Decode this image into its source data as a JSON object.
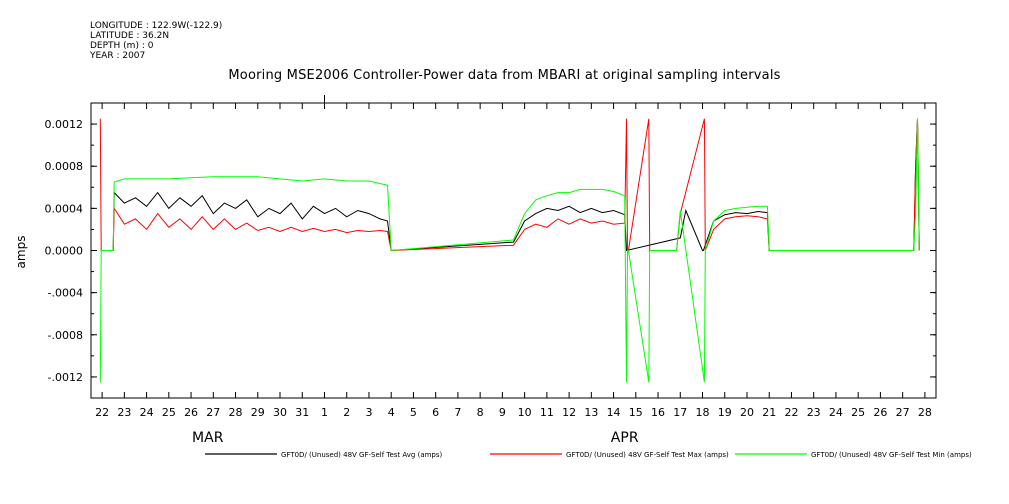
{
  "meta": {
    "longitude": "LONGITUDE : 122.9W(-122.9)",
    "latitude": "LATITUDE : 36.2N",
    "depth": "DEPTH (m) : 0",
    "year": "YEAR : 2007"
  },
  "chart_data": {
    "type": "line",
    "title": "Mooring MSE2006 Controller-Power data from MBARI at original sampling intervals",
    "ylabel": "amps",
    "xlabel": "",
    "ylim": [
      -0.0014,
      0.0014
    ],
    "yticks": [
      0.0012,
      0.0008,
      0.0004,
      0.0,
      -0.0004,
      -0.0008,
      -0.0012
    ],
    "ytick_labels": [
      "0.0012",
      "0.0008",
      "0.0004",
      "0.0000",
      "-.0004",
      "-.0008",
      "-.0012"
    ],
    "xlim": [
      "2007-03-21T12:00",
      "2007-04-28T12:00"
    ],
    "xtick_labels": [
      "22",
      "23",
      "24",
      "25",
      "26",
      "27",
      "28",
      "29",
      "30",
      "31",
      "1",
      "2",
      "3",
      "4",
      "5",
      "6",
      "7",
      "8",
      "9",
      "10",
      "11",
      "12",
      "13",
      "14",
      "15",
      "16",
      "17",
      "18",
      "19",
      "20",
      "21",
      "22",
      "23",
      "24",
      "25",
      "26",
      "27",
      "28"
    ],
    "month_labels": [
      "MAR",
      "APR"
    ],
    "grid": false,
    "legend_placement": "bottom",
    "series": [
      {
        "name": "GFT0D/ (Unused) 48V GF-Self Test Avg (amps)",
        "color": "#000000",
        "x": [
          "2007-03-22T00:00",
          "2007-03-22T12:00",
          "2007-03-22T13:00",
          "2007-03-23T00:00",
          "2007-03-23T12:00",
          "2007-03-24T00:00",
          "2007-03-24T12:00",
          "2007-03-25T00:00",
          "2007-03-25T12:00",
          "2007-03-26T00:00",
          "2007-03-26T12:00",
          "2007-03-27T00:00",
          "2007-03-27T12:00",
          "2007-03-28T00:00",
          "2007-03-28T12:00",
          "2007-03-29T00:00",
          "2007-03-29T12:00",
          "2007-03-30T00:00",
          "2007-03-30T12:00",
          "2007-03-31T00:00",
          "2007-03-31T12:00",
          "2007-04-01T00:00",
          "2007-04-01T12:00",
          "2007-04-02T00:00",
          "2007-04-02T12:00",
          "2007-04-03T00:00",
          "2007-04-03T12:00",
          "2007-04-03T20:00",
          "2007-04-04T00:00",
          "2007-04-09T12:00",
          "2007-04-10T00:00",
          "2007-04-10T12:00",
          "2007-04-11T00:00",
          "2007-04-11T12:00",
          "2007-04-12T00:00",
          "2007-04-12T12:00",
          "2007-04-13T00:00",
          "2007-04-13T12:00",
          "2007-04-14T00:00",
          "2007-04-14T12:00",
          "2007-04-14T14:00",
          "2007-04-17T00:00",
          "2007-04-17T06:00",
          "2007-04-18T00:00",
          "2007-04-18T01:00",
          "2007-04-18T12:00",
          "2007-04-19T00:00",
          "2007-04-19T12:00",
          "2007-04-20T00:00",
          "2007-04-20T12:00",
          "2007-04-20T22:00",
          "2007-04-21T00:00",
          "2007-04-27T12:00",
          "2007-04-27T14:00",
          "2007-04-27T16:00",
          "2007-04-27T18:00"
        ],
        "y": [
          0.0,
          0.0,
          0.00055,
          0.00045,
          0.0005,
          0.00042,
          0.00055,
          0.0004,
          0.0005,
          0.00042,
          0.00052,
          0.00035,
          0.00045,
          0.0004,
          0.00048,
          0.00032,
          0.0004,
          0.00035,
          0.00045,
          0.0003,
          0.00042,
          0.00035,
          0.0004,
          0.00032,
          0.00038,
          0.00035,
          0.0003,
          0.00028,
          0.0,
          8e-05,
          0.00028,
          0.00035,
          0.0004,
          0.00038,
          0.00042,
          0.00036,
          0.0004,
          0.00036,
          0.00038,
          0.00034,
          0.0,
          0.00012,
          0.00038,
          0.0,
          0.0,
          0.00028,
          0.00034,
          0.00036,
          0.00035,
          0.00037,
          0.00036,
          0.0,
          0.0,
          0.0008,
          0.00125,
          0.0
        ]
      },
      {
        "name": "GFT0D/ (Unused) 48V GF-Self Test Max (amps)",
        "color": "#ff0000",
        "x": [
          "2007-03-21T22:00",
          "2007-03-21T23:00",
          "2007-03-22T00:00",
          "2007-03-22T12:00",
          "2007-03-22T13:00",
          "2007-03-23T00:00",
          "2007-03-23T12:00",
          "2007-03-24T00:00",
          "2007-03-24T12:00",
          "2007-03-25T00:00",
          "2007-03-25T12:00",
          "2007-03-26T00:00",
          "2007-03-26T12:00",
          "2007-03-27T00:00",
          "2007-03-27T12:00",
          "2007-03-28T00:00",
          "2007-03-28T12:00",
          "2007-03-29T00:00",
          "2007-03-29T12:00",
          "2007-03-30T00:00",
          "2007-03-30T12:00",
          "2007-03-31T00:00",
          "2007-03-31T12:00",
          "2007-04-01T00:00",
          "2007-04-01T12:00",
          "2007-04-02T00:00",
          "2007-04-02T12:00",
          "2007-04-03T00:00",
          "2007-04-03T12:00",
          "2007-04-03T20:00",
          "2007-04-04T00:00",
          "2007-04-09T12:00",
          "2007-04-10T00:00",
          "2007-04-10T12:00",
          "2007-04-11T00:00",
          "2007-04-11T12:00",
          "2007-04-12T00:00",
          "2007-04-12T12:00",
          "2007-04-13T00:00",
          "2007-04-13T12:00",
          "2007-04-14T00:00",
          "2007-04-14T12:00",
          "2007-04-14T14:00",
          "2007-04-14T15:00",
          "2007-04-14T16:00",
          "2007-04-15T14:00",
          "2007-04-15T15:00",
          "2007-04-15T16:00",
          "2007-04-16T20:00",
          "2007-04-17T00:00",
          "2007-04-18T02:00",
          "2007-04-18T03:00",
          "2007-04-18T12:00",
          "2007-04-19T00:00",
          "2007-04-19T12:00",
          "2007-04-20T00:00",
          "2007-04-20T12:00",
          "2007-04-20T22:00",
          "2007-04-21T00:00",
          "2007-04-27T12:00",
          "2007-04-27T14:00",
          "2007-04-27T16:00",
          "2007-04-27T18:00"
        ],
        "y": [
          0.00125,
          0.0,
          0.0,
          0.0,
          0.0004,
          0.00025,
          0.0003,
          0.0002,
          0.00035,
          0.00022,
          0.0003,
          0.0002,
          0.00032,
          0.0002,
          0.0003,
          0.0002,
          0.00026,
          0.00019,
          0.00022,
          0.00018,
          0.00022,
          0.00018,
          0.00021,
          0.00018,
          0.0002,
          0.00017,
          0.00019,
          0.00018,
          0.00019,
          0.00018,
          0.0,
          5e-05,
          0.0002,
          0.00025,
          0.00022,
          0.0003,
          0.00025,
          0.0003,
          0.00026,
          0.00028,
          0.00025,
          0.00026,
          0.00125,
          0.0,
          0.0,
          0.00125,
          0.0,
          0.0,
          0.0,
          0.00035,
          0.00125,
          0.0,
          0.0002,
          0.0003,
          0.00032,
          0.00033,
          0.00032,
          0.0003,
          0.0,
          0.0,
          0.0008,
          0.00125,
          0.0
        ]
      },
      {
        "name": "GFT0D/ (Unused) 48V GF-Self Test Min (amps)",
        "color": "#00ff00",
        "x": [
          "2007-03-21T22:00",
          "2007-03-21T23:00",
          "2007-03-22T00:00",
          "2007-03-22T12:00",
          "2007-03-22T13:00",
          "2007-03-23T00:00",
          "2007-03-24T00:00",
          "2007-03-25T00:00",
          "2007-03-26T00:00",
          "2007-03-27T00:00",
          "2007-03-28T00:00",
          "2007-03-29T00:00",
          "2007-03-30T00:00",
          "2007-03-31T00:00",
          "2007-04-01T00:00",
          "2007-04-02T00:00",
          "2007-04-03T00:00",
          "2007-04-03T20:00",
          "2007-04-04T00:00",
          "2007-04-09T12:00",
          "2007-04-10T00:00",
          "2007-04-10T12:00",
          "2007-04-11T00:00",
          "2007-04-11T12:00",
          "2007-04-12T00:00",
          "2007-04-12T12:00",
          "2007-04-13T00:00",
          "2007-04-13T12:00",
          "2007-04-14T00:00",
          "2007-04-14T12:00",
          "2007-04-14T14:00",
          "2007-04-14T15:00",
          "2007-04-14T16:00",
          "2007-04-15T14:00",
          "2007-04-15T15:00",
          "2007-04-15T16:00",
          "2007-04-16T20:00",
          "2007-04-17T00:00",
          "2007-04-18T02:00",
          "2007-04-18T03:00",
          "2007-04-18T12:00",
          "2007-04-19T00:00",
          "2007-04-19T12:00",
          "2007-04-20T00:00",
          "2007-04-20T12:00",
          "2007-04-20T22:00",
          "2007-04-21T00:00",
          "2007-04-27T12:00",
          "2007-04-27T14:00",
          "2007-04-27T16:00",
          "2007-04-27T18:00"
        ],
        "y": [
          -0.00125,
          0.0,
          0.0,
          0.0,
          0.00065,
          0.00068,
          0.00068,
          0.00068,
          0.00069,
          0.0007,
          0.0007,
          0.0007,
          0.00068,
          0.00066,
          0.00068,
          0.00066,
          0.00066,
          0.00062,
          0.0,
          0.0001,
          0.00035,
          0.00048,
          0.00052,
          0.00055,
          0.00055,
          0.00058,
          0.00058,
          0.00058,
          0.00056,
          0.00052,
          -0.00125,
          0.0,
          0.0,
          -0.00125,
          0.0,
          0.0,
          0.0,
          0.00038,
          -0.00125,
          0.0,
          0.00028,
          0.00038,
          0.0004,
          0.00041,
          0.00042,
          0.00042,
          0.0,
          0.0,
          0.00035,
          0.00125,
          0.0
        ]
      }
    ]
  }
}
